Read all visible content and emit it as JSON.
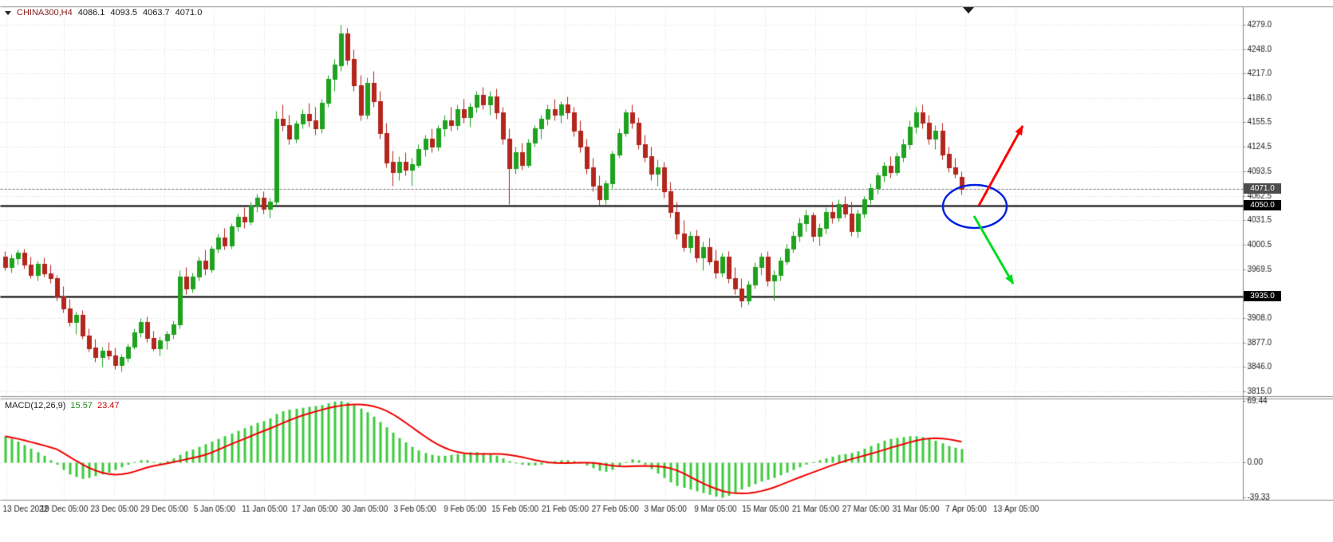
{
  "window": {
    "symbol_title": "CHINA300,H4",
    "ohlc": {
      "open": "4086.1",
      "high": "4093.5",
      "low": "4063.7",
      "close": "4071.0"
    },
    "macd_label": "MACD(12,26,9)",
    "macd_value": "15.57",
    "macd_signal_value": "23.47"
  },
  "price_axis": {
    "ticks": [
      "4279.0",
      "4248.0",
      "4217.0",
      "4186.0",
      "4155.5",
      "4124.5",
      "4093.5",
      "4062.5",
      "4031.5",
      "4000.5",
      "3969.5",
      "3908.0",
      "3877.0",
      "3846.0",
      "3815.0"
    ],
    "current_price_label": "4071.0",
    "line_labels": [
      "4050.0",
      "3935.0"
    ]
  },
  "macd_axis": {
    "ticks": [
      "69.44",
      "0.00",
      "-39.33"
    ]
  },
  "time_axis": {
    "labels": [
      "13 Dec 2022",
      "19 Dec 05:00",
      "23 Dec 05:00",
      "29 Dec 05:00",
      "5 Jan 05:00",
      "11 Jan 05:00",
      "17 Jan 05:00",
      "30 Jan 05:00",
      "3 Feb 05:00",
      "9 Feb 05:00",
      "15 Feb 05:00",
      "21 Feb 05:00",
      "27 Feb 05:00",
      "3 Mar 05:00",
      "9 Mar 05:00",
      "15 Mar 05:00",
      "21 Mar 05:00",
      "27 Mar 05:00",
      "31 Mar 05:00",
      "7 Apr 05:00",
      "13 Apr 05:00"
    ]
  },
  "levels": {
    "current_price": 4071.0,
    "horizontal_lines": [
      4050.0,
      3935.0
    ]
  },
  "annotations": {
    "ellipse_color": "#0020e0",
    "up_arrow_color": "#ff0000",
    "down_arrow_color": "#00dd1e"
  },
  "chart_data": {
    "type": "candlestick",
    "title": "CHINA300,H4",
    "symbol": "CHINA300",
    "timeframe": "H4",
    "subcharts": [
      "MACD(12,26,9)"
    ],
    "price_range": [
      3809,
      4302
    ],
    "macd_range": [
      -42,
      72
    ],
    "price_tick_values": [
      4279.0,
      4248.0,
      4217.0,
      4186.0,
      4155.5,
      4124.5,
      4093.5,
      4062.5,
      4031.5,
      4000.5,
      3969.5,
      3938.5,
      3908.0,
      3877.0,
      3846.0,
      3815.0
    ],
    "macd_tick_values": [
      69.44,
      0.0,
      -39.33
    ],
    "last_ohlc": [
      4086.1,
      4093.5,
      4063.7,
      4071.0
    ],
    "support_resistance": [
      4050.0,
      3935.0
    ],
    "candles": [
      [
        3985,
        3992,
        3968,
        3972
      ],
      [
        3972,
        3988,
        3965,
        3983
      ],
      [
        3983,
        3995,
        3975,
        3990
      ],
      [
        3990,
        3996,
        3970,
        3975
      ],
      [
        3975,
        3985,
        3958,
        3962
      ],
      [
        3962,
        3980,
        3955,
        3976
      ],
      [
        3976,
        3984,
        3960,
        3964
      ],
      [
        3964,
        3975,
        3952,
        3958
      ],
      [
        3958,
        3962,
        3930,
        3935
      ],
      [
        3935,
        3948,
        3915,
        3920
      ],
      [
        3920,
        3932,
        3898,
        3903
      ],
      [
        3903,
        3916,
        3888,
        3912
      ],
      [
        3912,
        3918,
        3882,
        3886
      ],
      [
        3886,
        3895,
        3865,
        3870
      ],
      [
        3870,
        3882,
        3852,
        3858
      ],
      [
        3858,
        3872,
        3846,
        3866
      ],
      [
        3866,
        3878,
        3855,
        3860
      ],
      [
        3860,
        3870,
        3843,
        3848
      ],
      [
        3848,
        3862,
        3840,
        3858
      ],
      [
        3858,
        3876,
        3852,
        3872
      ],
      [
        3872,
        3895,
        3868,
        3890
      ],
      [
        3890,
        3908,
        3884,
        3903
      ],
      [
        3903,
        3910,
        3878,
        3883
      ],
      [
        3883,
        3892,
        3866,
        3870
      ],
      [
        3870,
        3885,
        3860,
        3880
      ],
      [
        3880,
        3892,
        3868,
        3888
      ],
      [
        3888,
        3905,
        3882,
        3900
      ],
      [
        3900,
        3968,
        3895,
        3960
      ],
      [
        3960,
        3972,
        3938,
        3945
      ],
      [
        3945,
        3965,
        3940,
        3960
      ],
      [
        3960,
        3985,
        3955,
        3980
      ],
      [
        3980,
        3995,
        3962,
        3970
      ],
      [
        3970,
        4000,
        3965,
        3996
      ],
      [
        3996,
        4015,
        3990,
        4010
      ],
      [
        4010,
        4022,
        3995,
        4000
      ],
      [
        4000,
        4028,
        3996,
        4024
      ],
      [
        4024,
        4040,
        4018,
        4036
      ],
      [
        4036,
        4048,
        4022,
        4030
      ],
      [
        4030,
        4055,
        4026,
        4050
      ],
      [
        4050,
        4065,
        4042,
        4060
      ],
      [
        4060,
        4068,
        4040,
        4046
      ],
      [
        4046,
        4060,
        4035,
        4055
      ],
      [
        4055,
        4170,
        4050,
        4160
      ],
      [
        4160,
        4178,
        4145,
        4152
      ],
      [
        4152,
        4165,
        4128,
        4135
      ],
      [
        4135,
        4158,
        4130,
        4154
      ],
      [
        4154,
        4172,
        4148,
        4166
      ],
      [
        4166,
        4180,
        4150,
        4158
      ],
      [
        4158,
        4175,
        4140,
        4148
      ],
      [
        4148,
        4185,
        4142,
        4180
      ],
      [
        4180,
        4215,
        4175,
        4210
      ],
      [
        4210,
        4235,
        4195,
        4228
      ],
      [
        4228,
        4279,
        4220,
        4268
      ],
      [
        4268,
        4275,
        4228,
        4235
      ],
      [
        4235,
        4248,
        4195,
        4202
      ],
      [
        4202,
        4215,
        4158,
        4165
      ],
      [
        4165,
        4212,
        4160,
        4205
      ],
      [
        4205,
        4220,
        4175,
        4182
      ],
      [
        4182,
        4195,
        4135,
        4142
      ],
      [
        4142,
        4155,
        4098,
        4105
      ],
      [
        4105,
        4120,
        4075,
        4092
      ],
      [
        4092,
        4112,
        4082,
        4105
      ],
      [
        4105,
        4118,
        4088,
        4095
      ],
      [
        4095,
        4110,
        4075,
        4102
      ],
      [
        4102,
        4128,
        4098,
        4122
      ],
      [
        4122,
        4140,
        4112,
        4135
      ],
      [
        4135,
        4148,
        4118,
        4125
      ],
      [
        4125,
        4152,
        4120,
        4148
      ],
      [
        4148,
        4165,
        4138,
        4158
      ],
      [
        4158,
        4175,
        4145,
        4152
      ],
      [
        4152,
        4178,
        4146,
        4172
      ],
      [
        4172,
        4185,
        4155,
        4162
      ],
      [
        4162,
        4180,
        4150,
        4175
      ],
      [
        4175,
        4195,
        4168,
        4190
      ],
      [
        4190,
        4200,
        4172,
        4178
      ],
      [
        4178,
        4195,
        4165,
        4188
      ],
      [
        4188,
        4198,
        4160,
        4168
      ],
      [
        4168,
        4175,
        4128,
        4135
      ],
      [
        4135,
        4148,
        4052,
        4098
      ],
      [
        4098,
        4125,
        4090,
        4118
      ],
      [
        4118,
        4130,
        4095,
        4102
      ],
      [
        4102,
        4135,
        4098,
        4130
      ],
      [
        4130,
        4152,
        4125,
        4148
      ],
      [
        4148,
        4165,
        4135,
        4160
      ],
      [
        4160,
        4178,
        4152,
        4172
      ],
      [
        4172,
        4185,
        4158,
        4165
      ],
      [
        4165,
        4182,
        4155,
        4178
      ],
      [
        4178,
        4188,
        4160,
        4168
      ],
      [
        4168,
        4175,
        4138,
        4145
      ],
      [
        4145,
        4158,
        4118,
        4125
      ],
      [
        4125,
        4135,
        4090,
        4098
      ],
      [
        4098,
        4110,
        4068,
        4075
      ],
      [
        4075,
        4088,
        4050,
        4058
      ],
      [
        4058,
        4082,
        4052,
        4078
      ],
      [
        4078,
        4120,
        4072,
        4115
      ],
      [
        4115,
        4148,
        4110,
        4142
      ],
      [
        4142,
        4172,
        4138,
        4168
      ],
      [
        4168,
        4178,
        4148,
        4155
      ],
      [
        4155,
        4162,
        4122,
        4128
      ],
      [
        4128,
        4140,
        4105,
        4112
      ],
      [
        4112,
        4125,
        4082,
        4090
      ],
      [
        4090,
        4108,
        4075,
        4098
      ],
      [
        4098,
        4105,
        4060,
        4068
      ],
      [
        4068,
        4080,
        4035,
        4042
      ],
      [
        4042,
        4055,
        4008,
        4015
      ],
      [
        4015,
        4032,
        3992,
        3998
      ],
      [
        3998,
        4018,
        3990,
        4012
      ],
      [
        4012,
        4020,
        3978,
        3985
      ],
      [
        3985,
        4005,
        3968,
        3998
      ],
      [
        3998,
        4010,
        3975,
        3980
      ],
      [
        3980,
        3995,
        3958,
        3965
      ],
      [
        3965,
        3990,
        3960,
        3985
      ],
      [
        3985,
        3992,
        3952,
        3958
      ],
      [
        3958,
        3972,
        3938,
        3945
      ],
      [
        3945,
        3958,
        3922,
        3930
      ],
      [
        3930,
        3955,
        3925,
        3950
      ],
      [
        3950,
        3978,
        3945,
        3972
      ],
      [
        3972,
        3990,
        3962,
        3985
      ],
      [
        3985,
        3992,
        3948,
        3955
      ],
      [
        3955,
        3968,
        3930,
        3962
      ],
      [
        3962,
        3985,
        3955,
        3980
      ],
      [
        3980,
        4002,
        3975,
        3996
      ],
      [
        3996,
        4018,
        3990,
        4012
      ],
      [
        4012,
        4035,
        4005,
        4028
      ],
      [
        4028,
        4045,
        4018,
        4038
      ],
      [
        4038,
        4042,
        4005,
        4012
      ],
      [
        4012,
        4028,
        4000,
        4022
      ],
      [
        4022,
        4048,
        4015,
        4042
      ],
      [
        4042,
        4055,
        4028,
        4035
      ],
      [
        4035,
        4058,
        4030,
        4052
      ],
      [
        4052,
        4062,
        4035,
        4040
      ],
      [
        4040,
        4055,
        4012,
        4018
      ],
      [
        4018,
        4045,
        4010,
        4040
      ],
      [
        4040,
        4062,
        4035,
        4058
      ],
      [
        4058,
        4078,
        4052,
        4072
      ],
      [
        4072,
        4092,
        4065,
        4088
      ],
      [
        4088,
        4105,
        4080,
        4100
      ],
      [
        4100,
        4112,
        4085,
        4092
      ],
      [
        4092,
        4118,
        4088,
        4112
      ],
      [
        4112,
        4135,
        4105,
        4128
      ],
      [
        4128,
        4158,
        4122,
        4150
      ],
      [
        4150,
        4175,
        4142,
        4168
      ],
      [
        4168,
        4178,
        4148,
        4155
      ],
      [
        4155,
        4165,
        4128,
        4135
      ],
      [
        4135,
        4152,
        4122,
        4145
      ],
      [
        4145,
        4155,
        4108,
        4115
      ],
      [
        4115,
        4125,
        4092,
        4098
      ],
      [
        4098,
        4110,
        4085,
        4090
      ],
      [
        4086.1,
        4093.5,
        4063.7,
        4071.0
      ]
    ],
    "macd_histogram": [
      30,
      27,
      24,
      20,
      16,
      12,
      8,
      3,
      -2,
      -8,
      -13,
      -16,
      -18,
      -17,
      -15,
      -13,
      -11,
      -8,
      -5,
      -2,
      1,
      3,
      3,
      1,
      -1,
      2,
      5,
      9,
      13,
      15,
      18,
      21,
      24,
      27,
      30,
      33,
      36,
      39,
      42,
      45,
      47,
      50,
      55,
      58,
      60,
      61,
      62,
      63,
      64,
      65,
      67,
      69,
      69.4,
      68,
      65,
      61,
      57,
      52,
      46,
      40,
      34,
      28,
      23,
      18,
      14,
      11,
      9,
      8,
      8,
      9,
      10,
      11,
      12,
      12,
      11,
      10,
      8,
      5,
      2,
      0,
      -2,
      -3,
      -3,
      -2,
      0,
      2,
      3,
      3,
      2,
      0,
      -3,
      -6,
      -9,
      -10,
      -8,
      -4,
      1,
      4,
      3,
      -2,
      -7,
      -12,
      -17,
      -22,
      -26,
      -28,
      -30,
      -32,
      -34,
      -36,
      -38,
      -39.3,
      -37,
      -34,
      -30,
      -27,
      -24,
      -21,
      -19,
      -17,
      -14,
      -11,
      -8,
      -5,
      -2,
      1,
      3,
      5,
      7,
      9,
      10,
      11,
      13,
      16,
      19,
      22,
      25,
      27,
      28,
      29,
      30,
      30,
      29,
      27,
      25,
      22,
      19,
      17,
      15.57
    ],
    "colors": {
      "background": "#ffffff",
      "grid": "#d0d0d0",
      "bull": "#1fa21f",
      "bear": "#b3261e",
      "macd_histogram": "#3dcb3d",
      "macd_signal": "#f20000",
      "level_line": "#000000",
      "current_price_line": "#7a7a7a",
      "axis_text": "#1a1a1a",
      "separator": "#8c8c8c"
    }
  }
}
